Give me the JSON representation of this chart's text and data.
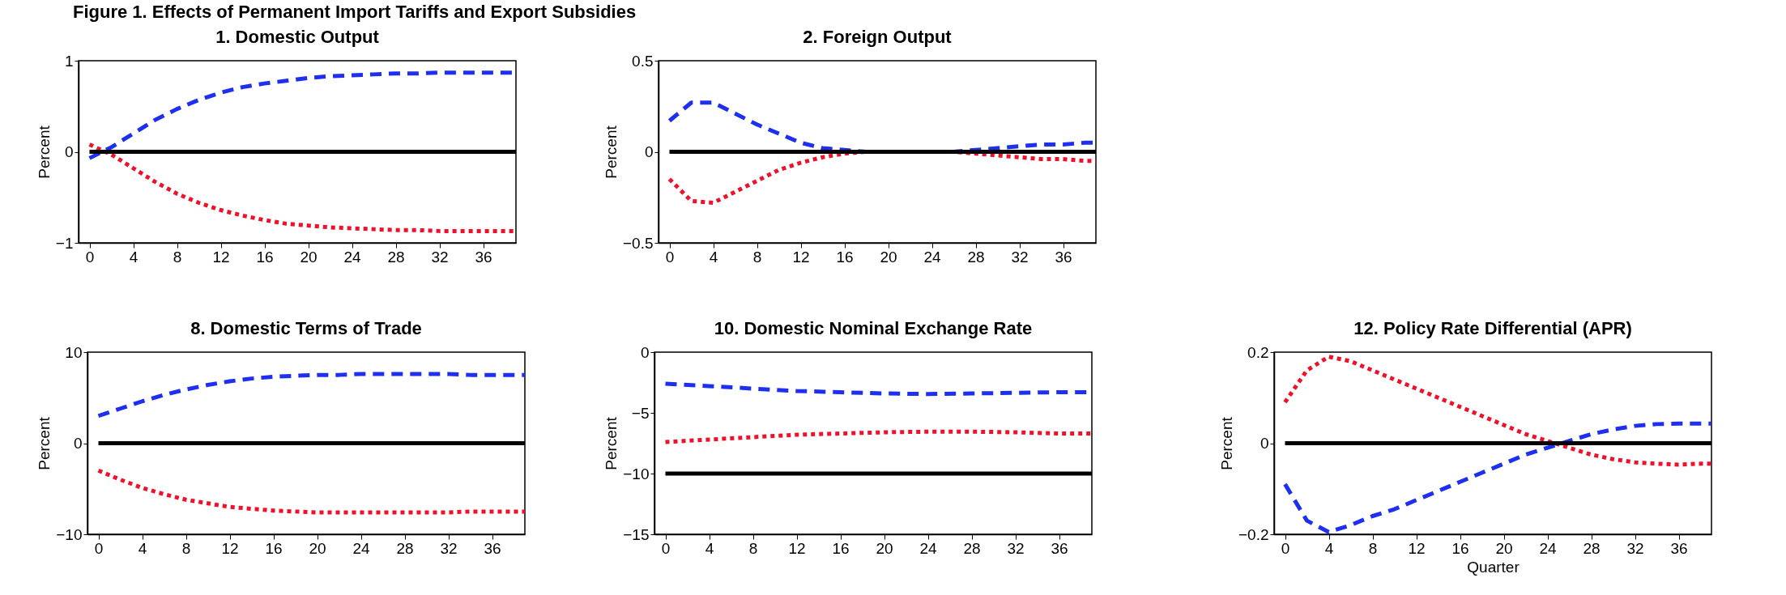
{
  "chart_data": [
    {
      "type": "line",
      "title": "1. Domestic Output",
      "ylabel": "Percent",
      "annotations": [
        "Figure 1. Effects of Permanent Import Tariffs and Export Subsidies"
      ],
      "x": [
        0,
        2,
        4,
        6,
        8,
        10,
        12,
        14,
        16,
        18,
        20,
        22,
        24,
        26,
        28,
        30,
        32,
        34,
        36,
        38,
        39
      ],
      "xlim": [
        -1,
        39
      ],
      "xticks": [
        0,
        4,
        8,
        12,
        16,
        20,
        24,
        28,
        32,
        36
      ],
      "ylim": [
        -1,
        1
      ],
      "yticks": [
        -1,
        0,
        1
      ],
      "grid": false,
      "series": [
        {
          "color": "#1f2ff0",
          "line_style": "dashed",
          "values": [
            -0.07,
            0.05,
            0.2,
            0.35,
            0.47,
            0.57,
            0.65,
            0.71,
            0.75,
            0.78,
            0.81,
            0.83,
            0.84,
            0.85,
            0.86,
            0.86,
            0.87,
            0.87,
            0.87,
            0.87,
            0.87
          ]
        },
        {
          "color": "#f0102a",
          "line_style": "dotted",
          "values": [
            0.08,
            -0.03,
            -0.18,
            -0.33,
            -0.46,
            -0.56,
            -0.64,
            -0.7,
            -0.75,
            -0.79,
            -0.81,
            -0.83,
            -0.84,
            -0.85,
            -0.86,
            -0.86,
            -0.87,
            -0.87,
            -0.87,
            -0.87,
            -0.87
          ]
        },
        {
          "color": "#000000",
          "line_style": "solid",
          "values": [
            0,
            0,
            0,
            0,
            0,
            0,
            0,
            0,
            0,
            0,
            0,
            0,
            0,
            0,
            0,
            0,
            0,
            0,
            0,
            0,
            0
          ]
        }
      ]
    },
    {
      "type": "line",
      "title": "2. Foreign Output",
      "ylabel": "Percent",
      "x": [
        0,
        2,
        4,
        6,
        8,
        10,
        12,
        14,
        16,
        18,
        20,
        22,
        24,
        26,
        28,
        30,
        32,
        34,
        36,
        38,
        39
      ],
      "xlim": [
        -1,
        39
      ],
      "xticks": [
        0,
        4,
        8,
        12,
        16,
        20,
        24,
        28,
        32,
        36
      ],
      "ylim": [
        -0.5,
        0.5
      ],
      "yticks": [
        -0.5,
        0,
        0.5
      ],
      "grid": false,
      "series": [
        {
          "color": "#1f2ff0",
          "line_style": "dashed",
          "values": [
            0.17,
            0.27,
            0.27,
            0.21,
            0.15,
            0.1,
            0.05,
            0.02,
            0.01,
            0,
            0,
            0,
            0,
            0,
            0.01,
            0.02,
            0.03,
            0.04,
            0.04,
            0.05,
            0.05
          ]
        },
        {
          "color": "#f0102a",
          "line_style": "dotted",
          "values": [
            -0.15,
            -0.27,
            -0.28,
            -0.22,
            -0.16,
            -0.1,
            -0.06,
            -0.03,
            -0.01,
            0,
            0,
            0,
            0,
            0,
            -0.01,
            -0.02,
            -0.03,
            -0.04,
            -0.04,
            -0.05,
            -0.05
          ]
        },
        {
          "color": "#000000",
          "line_style": "solid",
          "values": [
            0,
            0,
            0,
            0,
            0,
            0,
            0,
            0,
            0,
            0,
            0,
            0,
            0,
            0,
            0,
            0,
            0,
            0,
            0,
            0,
            0
          ]
        }
      ]
    },
    {
      "type": "line",
      "title": "8. Domestic Terms of Trade",
      "ylabel": "Percent",
      "x": [
        0,
        2,
        4,
        6,
        8,
        10,
        12,
        14,
        16,
        18,
        20,
        22,
        24,
        26,
        28,
        30,
        32,
        34,
        36,
        38,
        39
      ],
      "xlim": [
        -1,
        39
      ],
      "xticks": [
        0,
        4,
        8,
        12,
        16,
        20,
        24,
        28,
        32,
        36
      ],
      "ylim": [
        -10,
        10
      ],
      "yticks": [
        -10,
        0,
        10
      ],
      "grid": false,
      "series": [
        {
          "color": "#1f2ff0",
          "line_style": "dashed",
          "values": [
            3,
            3.8,
            4.6,
            5.3,
            5.9,
            6.4,
            6.8,
            7.1,
            7.3,
            7.4,
            7.5,
            7.5,
            7.6,
            7.6,
            7.6,
            7.6,
            7.6,
            7.5,
            7.5,
            7.5,
            7.5
          ]
        },
        {
          "color": "#f0102a",
          "line_style": "dotted",
          "values": [
            -3,
            -4,
            -4.9,
            -5.6,
            -6.2,
            -6.6,
            -7,
            -7.2,
            -7.4,
            -7.5,
            -7.6,
            -7.6,
            -7.6,
            -7.6,
            -7.6,
            -7.6,
            -7.6,
            -7.5,
            -7.5,
            -7.5,
            -7.5
          ]
        },
        {
          "color": "#000000",
          "line_style": "solid",
          "values": [
            0,
            0,
            0,
            0,
            0,
            0,
            0,
            0,
            0,
            0,
            0,
            0,
            0,
            0,
            0,
            0,
            0,
            0,
            0,
            0,
            0
          ]
        }
      ]
    },
    {
      "type": "line",
      "title": "10. Domestic Nominal Exchange Rate",
      "ylabel": "Percent",
      "x": [
        0,
        4,
        8,
        12,
        16,
        20,
        24,
        28,
        32,
        36,
        39
      ],
      "xlim": [
        -1,
        39
      ],
      "xticks": [
        0,
        4,
        8,
        12,
        16,
        20,
        24,
        28,
        32,
        36
      ],
      "ylim": [
        -15,
        0
      ],
      "yticks": [
        -15,
        -10,
        -5,
        0
      ],
      "grid": false,
      "series": [
        {
          "color": "#1f2ff0",
          "line_style": "dashed",
          "values": [
            -2.6,
            -2.8,
            -3,
            -3.2,
            -3.3,
            -3.4,
            -3.45,
            -3.4,
            -3.35,
            -3.3,
            -3.3
          ]
        },
        {
          "color": "#f0102a",
          "line_style": "dotted",
          "values": [
            -7.4,
            -7.2,
            -7,
            -6.8,
            -6.7,
            -6.6,
            -6.55,
            -6.55,
            -6.6,
            -6.7,
            -6.7
          ]
        },
        {
          "color": "#000000",
          "line_style": "solid",
          "values": [
            -10,
            -10,
            -10,
            -10,
            -10,
            -10,
            -10,
            -10,
            -10,
            -10,
            -10
          ]
        }
      ]
    },
    {
      "type": "line",
      "title": "12. Policy Rate Differential (APR)",
      "xlabel": "Quarter",
      "ylabel": "Percent",
      "x": [
        0,
        2,
        4,
        6,
        8,
        10,
        12,
        14,
        16,
        18,
        20,
        22,
        24,
        26,
        28,
        30,
        32,
        34,
        36,
        38,
        39
      ],
      "xlim": [
        -1,
        39
      ],
      "xticks": [
        0,
        4,
        8,
        12,
        16,
        20,
        24,
        28,
        32,
        36
      ],
      "ylim": [
        -0.2,
        0.2
      ],
      "yticks": [
        -0.2,
        0,
        0.2
      ],
      "grid": false,
      "series": [
        {
          "color": "#1f2ff0",
          "line_style": "dashed",
          "values": [
            -0.09,
            -0.17,
            -0.195,
            -0.18,
            -0.16,
            -0.145,
            -0.125,
            -0.105,
            -0.085,
            -0.065,
            -0.045,
            -0.025,
            -0.01,
            0.005,
            0.02,
            0.03,
            0.038,
            0.042,
            0.043,
            0.043,
            0.043
          ]
        },
        {
          "color": "#f0102a",
          "line_style": "dotted",
          "values": [
            0.09,
            0.16,
            0.19,
            0.18,
            0.16,
            0.14,
            0.12,
            0.1,
            0.08,
            0.06,
            0.04,
            0.02,
            0.005,
            -0.01,
            -0.025,
            -0.035,
            -0.042,
            -0.045,
            -0.047,
            -0.045,
            -0.045
          ]
        },
        {
          "color": "#000000",
          "line_style": "solid",
          "values": [
            0,
            0,
            0,
            0,
            0,
            0,
            0,
            0,
            0,
            0,
            0,
            0,
            0,
            0,
            0,
            0,
            0,
            0,
            0,
            0,
            0
          ]
        }
      ]
    }
  ]
}
